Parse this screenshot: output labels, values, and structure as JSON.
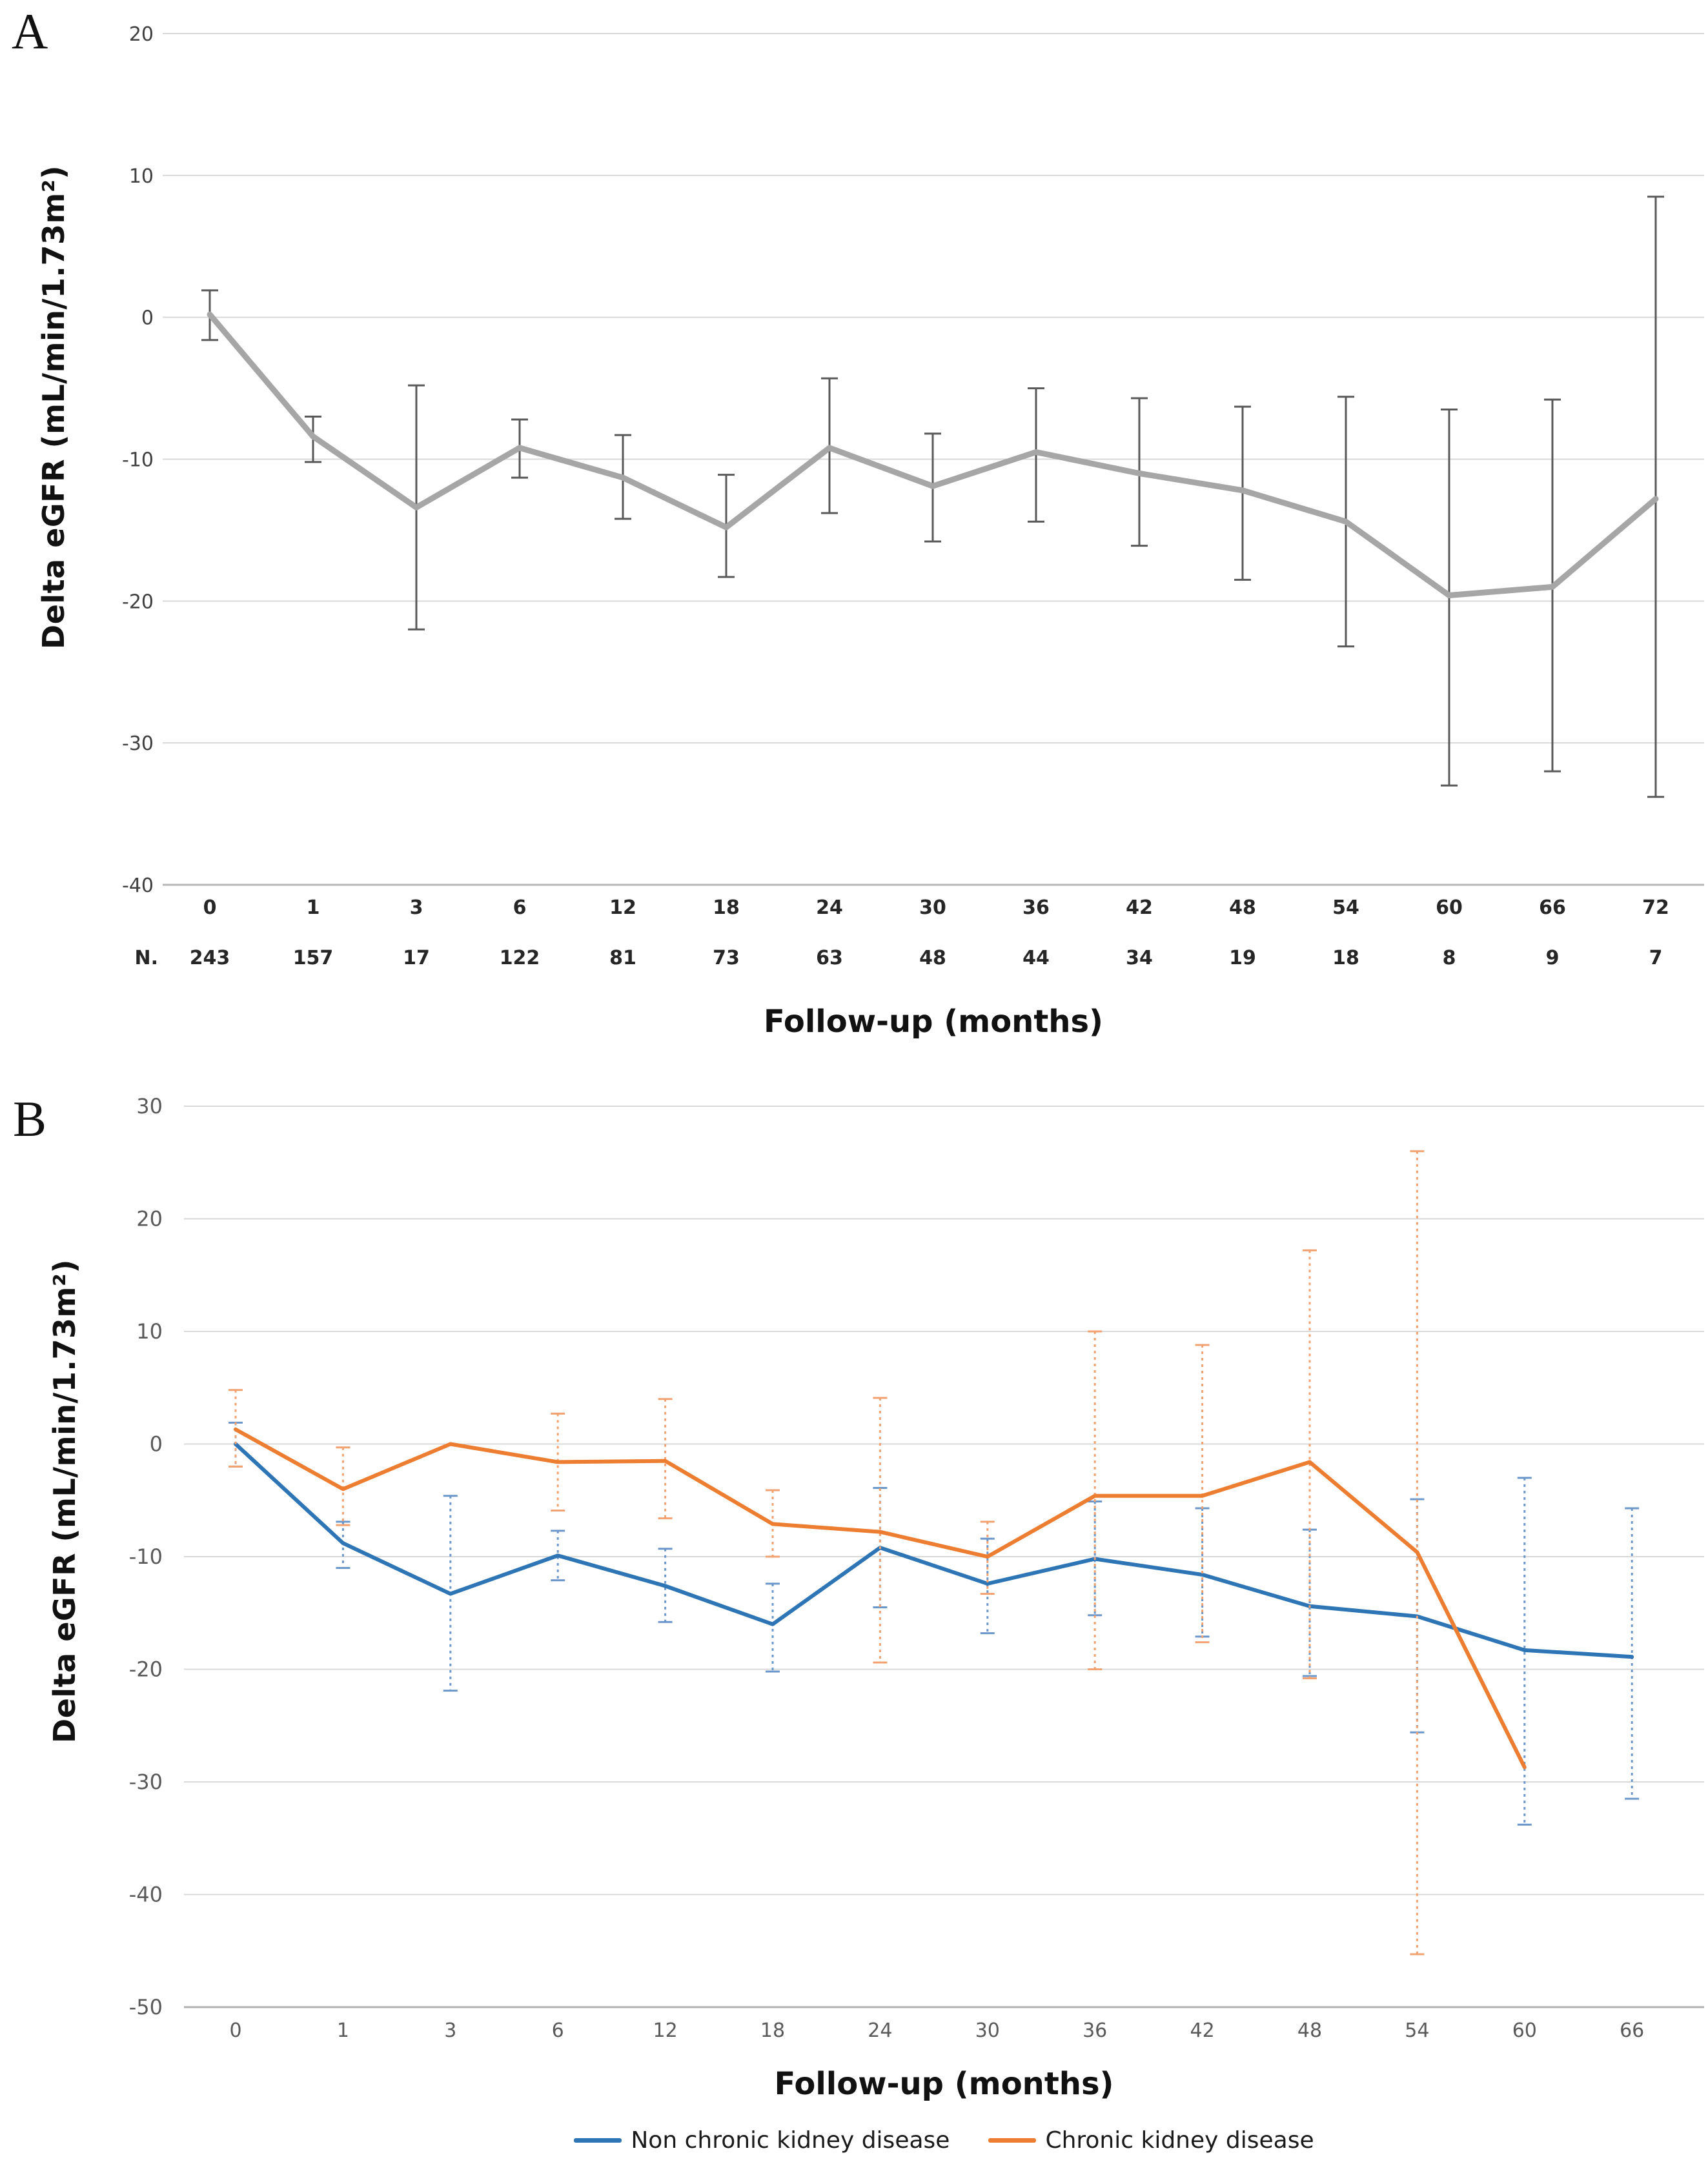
{
  "figure": {
    "background": "#ffffff",
    "panel_a_letter": "A",
    "panel_b_letter": "B"
  },
  "chart_data": [
    {
      "id": "panel-a",
      "type": "line",
      "panel_letter": "A",
      "ylabel": "Delta eGFR (mL/min/1.73m²)",
      "xlabel": "Follow-up (months)",
      "ylim": [
        -40,
        20
      ],
      "ytick_step": 10,
      "grid": true,
      "grid_color": "#d9d9d9",
      "axis_color": "#b7b7b7",
      "tick_color": "#404040",
      "categories": [
        "0",
        "1",
        "3",
        "6",
        "12",
        "18",
        "24",
        "30",
        "36",
        "42",
        "48",
        "54",
        "60",
        "66",
        "72"
      ],
      "n_label": "N.",
      "n_values": [
        "243",
        "157",
        "17",
        "122",
        "81",
        "73",
        "63",
        "48",
        "44",
        "34",
        "19",
        "18",
        "8",
        "9",
        "7"
      ],
      "series": [
        {
          "name": "All patients",
          "color": "#a6a6a6",
          "line_width": 9,
          "error_color": "#595959",
          "error_dashed": false,
          "values": [
            0.2,
            -8.4,
            -13.4,
            -9.2,
            -11.3,
            -14.8,
            -9.2,
            -11.9,
            -9.5,
            -11.0,
            -12.2,
            -14.4,
            -19.6,
            -19.0,
            -12.8
          ],
          "error_high": [
            1.9,
            -7.0,
            -4.8,
            -7.2,
            -8.3,
            -11.1,
            -4.3,
            -8.2,
            -5.0,
            -5.7,
            -6.3,
            -5.6,
            -6.5,
            -5.8,
            8.5
          ],
          "error_low": [
            -1.6,
            -10.2,
            -22.0,
            -11.3,
            -14.2,
            -18.3,
            -13.8,
            -15.8,
            -14.4,
            -16.1,
            -18.5,
            -23.2,
            -33.0,
            -32.0,
            -33.8
          ]
        }
      ]
    },
    {
      "id": "panel-b",
      "type": "line",
      "panel_letter": "B",
      "ylabel": "Delta eGFR (mL/min/1.73m²)",
      "xlabel": "Follow-up (months)",
      "ylim": [
        -50,
        30
      ],
      "ytick_step": 10,
      "grid": true,
      "grid_color": "#d9d9d9",
      "axis_color": "#b0b0b0",
      "tick_color": "#595959",
      "categories": [
        "0",
        "1",
        "3",
        "6",
        "12",
        "18",
        "24",
        "30",
        "36",
        "42",
        "48",
        "54",
        "60",
        "66"
      ],
      "legend_position": "bottom",
      "series": [
        {
          "name": "Non chronic kidney disease",
          "color": "#2e75b6",
          "line_width": 6,
          "error_color": "#6b96c9",
          "error_dashed": true,
          "values": [
            0.0,
            -8.8,
            -13.3,
            -9.9,
            -12.6,
            -16.0,
            -9.2,
            -12.4,
            -10.2,
            -11.6,
            -14.4,
            -15.3,
            -18.3,
            -18.9
          ],
          "error_high": [
            1.9,
            -6.9,
            -4.6,
            -7.7,
            -9.3,
            -12.4,
            -3.9,
            -8.4,
            -5.1,
            -5.7,
            -7.6,
            -4.9,
            -3.0,
            -5.7
          ],
          "error_low": [
            -2.0,
            -11.0,
            -21.9,
            -12.1,
            -15.8,
            -20.2,
            -14.5,
            -16.8,
            -15.2,
            -17.1,
            -20.6,
            -25.6,
            -33.8,
            -31.5
          ]
        },
        {
          "name": "Chronic kidney disease",
          "color": "#ed7d31",
          "line_width": 6,
          "error_color": "#f2a170",
          "error_dashed": true,
          "values": [
            1.3,
            -4.0,
            0.0,
            -1.6,
            -1.5,
            -7.1,
            -7.8,
            -10.0,
            -4.6,
            -4.6,
            -1.6,
            -9.6,
            -28.7,
            null
          ],
          "error_high": [
            4.8,
            -0.3,
            null,
            2.7,
            4.0,
            -4.1,
            4.1,
            -6.9,
            10.0,
            8.8,
            17.2,
            26.0,
            null,
            null
          ],
          "error_low": [
            -2.0,
            -7.2,
            null,
            -5.9,
            -6.6,
            -10.0,
            -19.4,
            -13.3,
            -20.0,
            -17.6,
            -20.8,
            -45.3,
            null,
            null
          ]
        }
      ]
    }
  ]
}
